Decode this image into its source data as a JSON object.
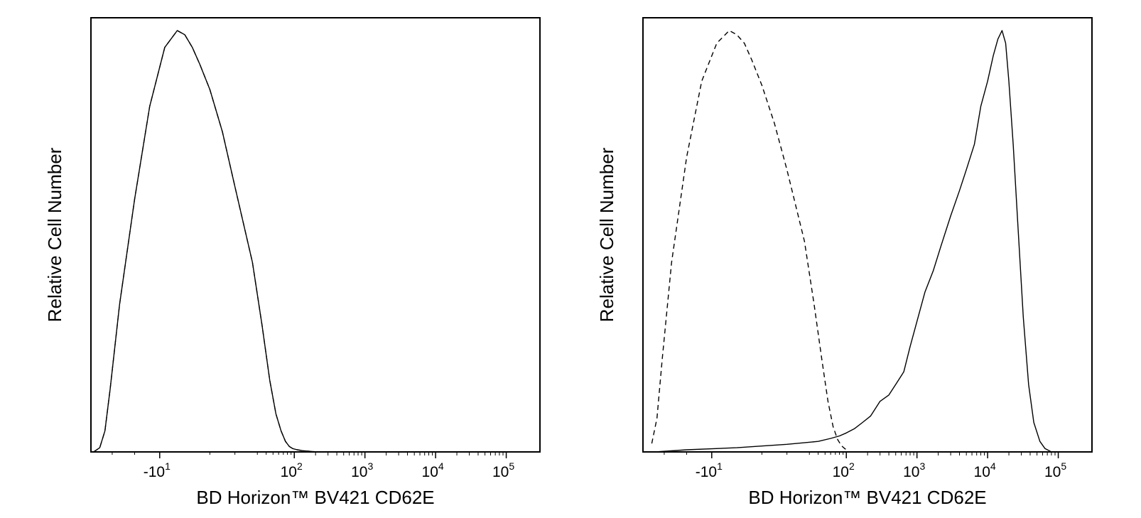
{
  "chart_data": [
    {
      "type": "line",
      "panel": "left",
      "ylabel": "Relative Cell Number",
      "xlabel": "BD Horizon™ BV421 CD62E",
      "x_scale": "biexponential",
      "xlim": [
        -60,
        300000
      ],
      "ylim": [
        0,
        100
      ],
      "grid": false,
      "x_ticks": [
        {
          "value": -10,
          "base": "-10",
          "exp": "1"
        },
        {
          "value": 100,
          "base": "10",
          "exp": "2"
        },
        {
          "value": 1000,
          "base": "10",
          "exp": "3"
        },
        {
          "value": 10000,
          "base": "10",
          "exp": "4"
        },
        {
          "value": 100000,
          "base": "10",
          "exp": "5"
        }
      ],
      "series": [
        {
          "style": "dashed",
          "x": [
            -55,
            -45,
            -38,
            -32,
            -26,
            -20,
            -14,
            -8,
            -3,
            0,
            3,
            6,
            10,
            15,
            20,
            27,
            35,
            45,
            55,
            65,
            75,
            85,
            95,
            110,
            130,
            150,
            180,
            210
          ],
          "y": [
            0,
            1,
            5,
            15,
            35,
            60,
            82,
            96,
            100,
            99,
            96,
            92,
            86,
            76,
            63,
            45,
            30,
            17,
            9,
            5,
            2.5,
            1.3,
            0.8,
            0.5,
            0.3,
            0.2,
            0.1,
            0
          ]
        },
        {
          "style": "solid",
          "x": [
            -55,
            -45,
            -38,
            -32,
            -26,
            -20,
            -14,
            -8,
            -3,
            0,
            3,
            6,
            10,
            15,
            20,
            27,
            35,
            45,
            55,
            65,
            75,
            85,
            95,
            110,
            130,
            150,
            180,
            210
          ],
          "y": [
            0,
            1,
            5,
            15,
            35,
            60,
            82,
            96,
            100,
            99,
            96,
            92,
            86,
            76,
            63,
            45,
            30,
            17,
            9,
            5,
            2.5,
            1.3,
            0.8,
            0.5,
            0.3,
            0.2,
            0.1,
            0
          ]
        }
      ]
    },
    {
      "type": "line",
      "panel": "right",
      "ylabel": "Relative Cell Number",
      "xlabel": "BD Horizon™ BV421 CD62E",
      "x_scale": "biexponential",
      "xlim": [
        -60,
        300000
      ],
      "ylim": [
        0,
        100
      ],
      "grid": false,
      "x_ticks": [
        {
          "value": -10,
          "base": "-10",
          "exp": "1"
        },
        {
          "value": 100,
          "base": "10",
          "exp": "2"
        },
        {
          "value": 1000,
          "base": "10",
          "exp": "3"
        },
        {
          "value": 10000,
          "base": "10",
          "exp": "4"
        },
        {
          "value": 100000,
          "base": "10",
          "exp": "5"
        }
      ],
      "series": [
        {
          "style": "dashed",
          "x": [
            -45,
            -38,
            -32,
            -26,
            -20,
            -14,
            -8,
            -3,
            0,
            3,
            6,
            10,
            15,
            20,
            27,
            35,
            45,
            55,
            65,
            75,
            85,
            95,
            110
          ],
          "y": [
            2,
            8,
            22,
            45,
            70,
            88,
            97,
            100,
            99,
            97,
            93,
            87,
            78,
            67,
            50,
            35,
            22,
            12,
            6,
            3,
            1.5,
            0.8,
            0
          ]
        },
        {
          "style": "solid",
          "x": [
            -40,
            -20,
            0,
            20,
            40,
            60,
            80,
            100,
            130,
            170,
            220,
            300,
            400,
            500,
            650,
            800,
            1000,
            1300,
            1700,
            2200,
            3000,
            4000,
            5000,
            6500,
            8000,
            10000,
            12000,
            14000,
            16000,
            18000,
            20000,
            23000,
            27000,
            32000,
            38000,
            45000,
            55000,
            65000,
            80000
          ],
          "y": [
            0,
            0.5,
            1,
            1.8,
            2.5,
            3.2,
            3.8,
            4.5,
            5.5,
            7,
            8.5,
            12,
            13.5,
            16,
            19,
            25,
            31,
            38,
            43,
            49,
            56,
            62,
            67,
            73,
            82,
            88,
            94,
            98,
            100,
            97,
            88,
            73,
            53,
            32,
            16,
            7,
            2.5,
            0.8,
            0
          ]
        }
      ]
    }
  ]
}
